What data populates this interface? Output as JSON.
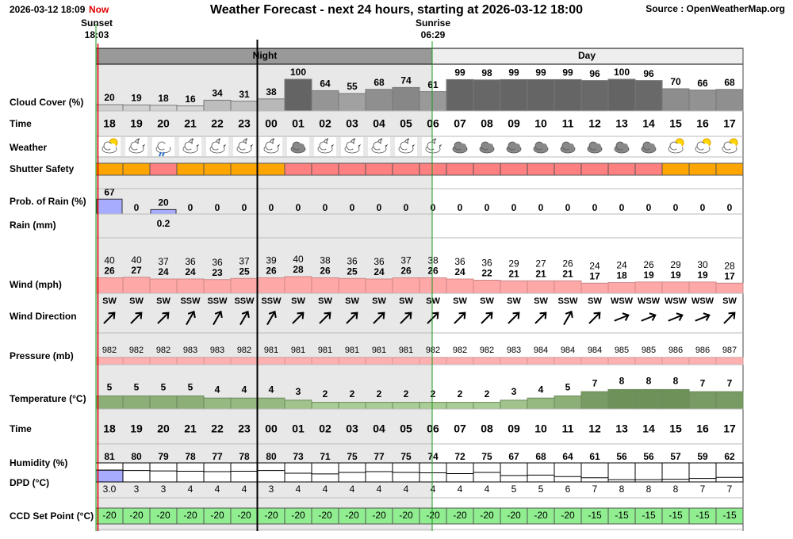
{
  "header": {
    "timestamp": "2026-03-12 18:09",
    "now": "Now",
    "title": "Weather Forecast - next 24 hours, starting at 2026-03-12 18:00",
    "source": "Source : OpenWeatherMap.org"
  },
  "sun": {
    "sunset_label": "Sunset",
    "sunset": "18:03",
    "sunrise_label": "Sunrise",
    "sunrise": "06:29"
  },
  "periods": {
    "night": "Night",
    "day": "Day"
  },
  "row_labels": {
    "cloud_cover": "Cloud Cover (%)",
    "time": "Time",
    "weather": "Weather",
    "shutter": "Shutter Safety",
    "rain_probability": "Prob. of Rain (%)",
    "rain_mm": "Rain (mm)",
    "wind": "Wind (mph)",
    "wind_direction": "Wind Direction",
    "pressure": "Pressure (mb)",
    "temperature": "Temperature (°C)",
    "time2": "Time",
    "humidity": "Humidity (%)",
    "dpd": "DPD (°C)",
    "ccd": "CCD Set Point (°C)"
  },
  "hours": [
    "18",
    "19",
    "20",
    "21",
    "22",
    "23",
    "00",
    "01",
    "02",
    "03",
    "04",
    "05",
    "06",
    "07",
    "08",
    "09",
    "10",
    "11",
    "12",
    "13",
    "14",
    "15",
    "16",
    "17"
  ],
  "cloud_cover": [
    20,
    19,
    18,
    16,
    34,
    31,
    38,
    100,
    64,
    55,
    68,
    74,
    61,
    99,
    98,
    99,
    99,
    99,
    96,
    100,
    96,
    70,
    66,
    68
  ],
  "shutter_colors": [
    "#ffa500",
    "#ffa500",
    "#ff8080",
    "#ffa500",
    "#ffa500",
    "#ffa500",
    "#ffa500",
    "#ff8080",
    "#ff8080",
    "#ff8080",
    "#ff8080",
    "#ff8080",
    "#ff8080",
    "#ff8080",
    "#ff8080",
    "#ff8080",
    "#ff8080",
    "#ff8080",
    "#ff8080",
    "#ff8080",
    "#ff8080",
    "#ffa500",
    "#ffa500",
    "#ffa500"
  ],
  "rain_probability": [
    67,
    0,
    20,
    0,
    0,
    0,
    0,
    0,
    0,
    0,
    0,
    0,
    0,
    0,
    0,
    0,
    0,
    0,
    0,
    0,
    0,
    0,
    0,
    0
  ],
  "rain_mm": [
    null,
    null,
    0.2,
    null,
    null,
    null,
    null,
    null,
    null,
    null,
    null,
    null,
    null,
    null,
    null,
    null,
    null,
    null,
    null,
    null,
    null,
    null,
    null,
    null
  ],
  "wind_gust": [
    40,
    40,
    37,
    36,
    36,
    37,
    39,
    40,
    38,
    36,
    36,
    37,
    38,
    36,
    36,
    29,
    27,
    26,
    24,
    24,
    26,
    29,
    30,
    28
  ],
  "wind_speed": [
    26,
    27,
    24,
    24,
    23,
    25,
    26,
    28,
    26,
    25,
    24,
    26,
    26,
    24,
    22,
    21,
    21,
    21,
    17,
    18,
    19,
    19,
    19,
    17
  ],
  "wind_direction": [
    "SW",
    "SW",
    "SW",
    "SSW",
    "SSW",
    "SSW",
    "SSW",
    "SW",
    "SW",
    "SW",
    "SW",
    "SW",
    "SW",
    "SW",
    "SW",
    "SW",
    "SW",
    "SSW",
    "SW",
    "WSW",
    "WSW",
    "WSW",
    "WSW",
    "SW"
  ],
  "pressure": [
    982,
    982,
    982,
    983,
    983,
    982,
    981,
    981,
    981,
    981,
    981,
    981,
    982,
    982,
    982,
    983,
    984,
    984,
    984,
    985,
    985,
    986,
    986,
    987
  ],
  "temperature": [
    5,
    5,
    5,
    5,
    4,
    4,
    4,
    3,
    2,
    2,
    2,
    2,
    2,
    2,
    2,
    3,
    4,
    5,
    7,
    8,
    8,
    8,
    7,
    7
  ],
  "humidity": [
    81,
    80,
    79,
    78,
    77,
    78,
    80,
    73,
    71,
    75,
    77,
    75,
    74,
    72,
    75,
    67,
    68,
    64,
    61,
    56,
    56,
    57,
    59,
    62
  ],
  "dpd": [
    {
      "value": 3,
      "label": "3.0"
    },
    3,
    3,
    4,
    4,
    4,
    3,
    4,
    4,
    4,
    4,
    4,
    4,
    4,
    4,
    5,
    5,
    6,
    7,
    8,
    8,
    8,
    7,
    7
  ],
  "ccd_set_point": [
    -20,
    -20,
    -20,
    -20,
    -20,
    -20,
    -20,
    -20,
    -20,
    -20,
    -20,
    -20,
    -20,
    -20,
    -20,
    -20,
    -20,
    -20,
    -15,
    -15,
    -15,
    -15,
    -15,
    -15
  ]
}
